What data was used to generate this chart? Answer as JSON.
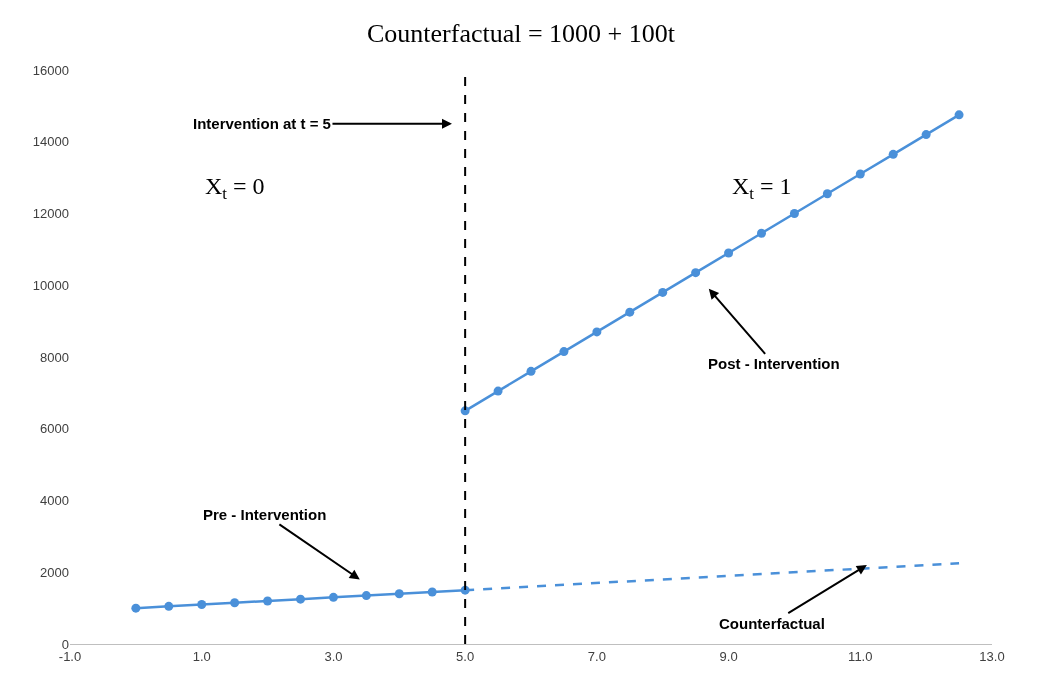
{
  "chart_data": {
    "type": "line",
    "title": "Counterfactual = 1000 + 100t",
    "series": [
      {
        "x": [
          0,
          0.5,
          1,
          1.5,
          2,
          2.5,
          3,
          3.5,
          4,
          4.5,
          5
        ],
        "values": [
          1000,
          1050,
          1100,
          1150,
          1200,
          1250,
          1300,
          1350,
          1400,
          1450,
          1500
        ],
        "color": "#4a90d9",
        "marker": "circle",
        "line_style": "solid"
      },
      {
        "x": [
          5,
          5.5,
          6,
          6.5,
          7,
          7.5,
          8,
          8.5,
          9,
          9.5,
          10,
          10.5,
          11,
          11.5,
          12,
          12.5
        ],
        "values": [
          6500,
          7050,
          7600,
          8150,
          8700,
          9250,
          9800,
          10350,
          10900,
          11450,
          12000,
          12550,
          13100,
          13650,
          14200,
          14750
        ],
        "color": "#4a90d9",
        "marker": "circle",
        "line_style": "solid"
      },
      {
        "x": [
          5,
          12.5
        ],
        "values": [
          1500,
          2250
        ],
        "color": "#4a90d9",
        "marker": "none",
        "line_style": "dashed"
      }
    ],
    "xlim": [
      -1,
      13
    ],
    "xticks": [
      {
        "value": -1,
        "label": "-1.0"
      },
      {
        "value": 1,
        "label": "1.0"
      },
      {
        "value": 3,
        "label": "3.0"
      },
      {
        "value": 5,
        "label": "5.0"
      },
      {
        "value": 7,
        "label": "7.0"
      },
      {
        "value": 9,
        "label": "9.0"
      },
      {
        "value": 11,
        "label": "11.0"
      },
      {
        "value": 13,
        "label": "13.0"
      }
    ],
    "ylim": [
      0,
      16000
    ],
    "yticks": [
      0,
      2000,
      4000,
      6000,
      8000,
      10000,
      12000,
      14000,
      16000
    ],
    "grid": false,
    "ref_lines": [
      {
        "axis": "x",
        "value": 5,
        "label": null,
        "color": "#000000",
        "line_style": "dashed"
      }
    ],
    "annotations": [
      "Intervention at t = 5",
      "X$_{t}$ = 0",
      "X$_{t}$ = 1",
      "Post - Intervention",
      "Pre - Intervention",
      {
        "text": "Counterfactual",
        "x": 11.1,
        "y": 2200
      }
    ]
  }
}
